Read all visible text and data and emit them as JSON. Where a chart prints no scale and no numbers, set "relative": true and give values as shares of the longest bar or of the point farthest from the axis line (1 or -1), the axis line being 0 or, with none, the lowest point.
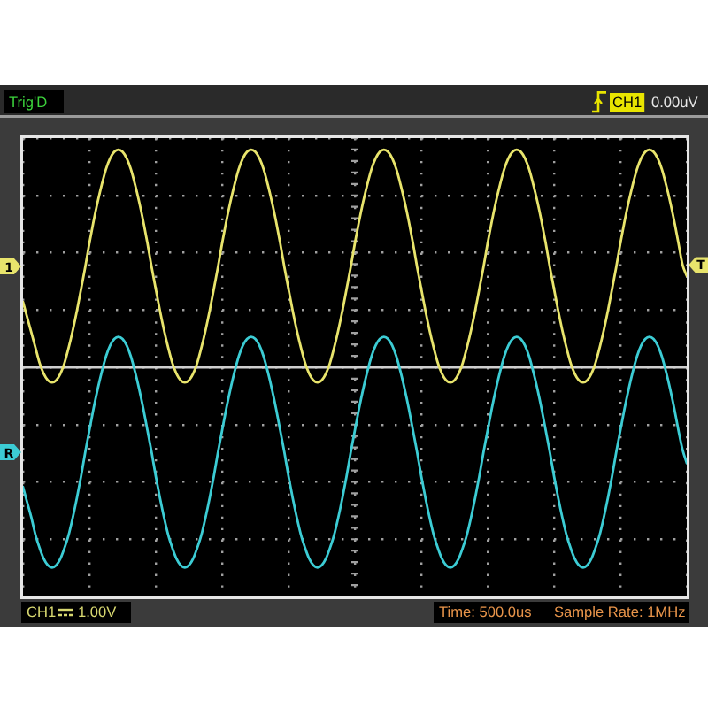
{
  "chart_data": {
    "type": "line",
    "relative": true,
    "grid": true,
    "categories": [
      null,
      null,
      null,
      null,
      null,
      null,
      null,
      null,
      null,
      null,
      null,
      null,
      null,
      null,
      null,
      null,
      null,
      null,
      null,
      null,
      null,
      null,
      null,
      null,
      null,
      null,
      null,
      null,
      null,
      null,
      null,
      null,
      null,
      null,
      null,
      null,
      null,
      null,
      null,
      null,
      null,
      null,
      null,
      null,
      null,
      null,
      null,
      null,
      null,
      null,
      null,
      null,
      null,
      null,
      null,
      null,
      null,
      null,
      null,
      null,
      null,
      null,
      null,
      null,
      null,
      null,
      null,
      null,
      null,
      null,
      null,
      null,
      null,
      null,
      null,
      null,
      null,
      null,
      null,
      null,
      null,
      null,
      null,
      null,
      null,
      null,
      null,
      null,
      null,
      null,
      null,
      null,
      null,
      null,
      null,
      null,
      null,
      null,
      null,
      null,
      null,
      null,
      null,
      null,
      null,
      null,
      null,
      null,
      null,
      null,
      null,
      null,
      null,
      null,
      null,
      null,
      null,
      null,
      null,
      null,
      null,
      null,
      null,
      null,
      null,
      null,
      null,
      null,
      null,
      null,
      null,
      null,
      null,
      null,
      null,
      null,
      null,
      null,
      null,
      null,
      null,
      null,
      null,
      null,
      null,
      null,
      null,
      null,
      null,
      null,
      null,
      null,
      null,
      null,
      null,
      null,
      null,
      null,
      null,
      null,
      null
    ],
    "series": [
      {
        "name": "1",
        "color": "#e8e46c",
        "values": [
          0.3,
          0.23,
          0.16,
          0.09,
          0.02,
          -0.03,
          -0.06,
          -0.07,
          -0.06,
          -0.03,
          0.02,
          0.09,
          0.17,
          0.26,
          0.36,
          0.46,
          0.57,
          0.67,
          0.76,
          0.84,
          0.91,
          0.96,
          0.99,
          1,
          0.99,
          0.96,
          0.91,
          0.84,
          0.76,
          0.67,
          0.57,
          0.46,
          0.36,
          0.26,
          0.17,
          0.09,
          0.02,
          -0.03,
          -0.06,
          -0.07,
          -0.06,
          -0.03,
          0.02,
          0.09,
          0.17,
          0.26,
          0.36,
          0.46,
          0.57,
          0.67,
          0.76,
          0.84,
          0.91,
          0.96,
          0.99,
          1,
          0.99,
          0.96,
          0.91,
          0.84,
          0.76,
          0.67,
          0.57,
          0.46,
          0.36,
          0.26,
          0.17,
          0.09,
          0.02,
          -0.03,
          -0.06,
          -0.07,
          -0.06,
          -0.03,
          0.02,
          0.09,
          0.17,
          0.26,
          0.36,
          0.46,
          0.57,
          0.67,
          0.76,
          0.84,
          0.91,
          0.96,
          0.99,
          1,
          0.99,
          0.96,
          0.91,
          0.84,
          0.76,
          0.67,
          0.57,
          0.46,
          0.36,
          0.26,
          0.17,
          0.09,
          0.02,
          -0.03,
          -0.06,
          -0.07,
          -0.06,
          -0.03,
          0.02,
          0.09,
          0.17,
          0.26,
          0.36,
          0.46,
          0.57,
          0.67,
          0.76,
          0.84,
          0.91,
          0.96,
          0.99,
          1,
          0.99,
          0.96,
          0.91,
          0.84,
          0.76,
          0.67,
          0.57,
          0.46,
          0.36,
          0.26,
          0.17,
          0.09,
          0.02,
          -0.03,
          -0.06,
          -0.07,
          -0.06,
          -0.03,
          0.02,
          0.09,
          0.17,
          0.26,
          0.36,
          0.46,
          0.57,
          0.67,
          0.76,
          0.84,
          0.91,
          0.96,
          0.99,
          1,
          0.99,
          0.96,
          0.91,
          0.84,
          0.76,
          0.67,
          0.57,
          0.47,
          0.42
        ]
      },
      {
        "name": "R",
        "color": "#3cccd4",
        "values": [
          -0.55,
          -0.62,
          -0.69,
          -0.77,
          -0.83,
          -0.88,
          -0.91,
          -0.92,
          -0.91,
          -0.88,
          -0.83,
          -0.77,
          -0.69,
          -0.6,
          -0.5,
          -0.39,
          -0.29,
          -0.19,
          -0.1,
          -0.02,
          0.05,
          0.1,
          0.13,
          0.14,
          0.13,
          0.1,
          0.05,
          -0.02,
          -0.1,
          -0.19,
          -0.29,
          -0.39,
          -0.5,
          -0.6,
          -0.69,
          -0.77,
          -0.83,
          -0.88,
          -0.91,
          -0.92,
          -0.91,
          -0.88,
          -0.83,
          -0.77,
          -0.69,
          -0.6,
          -0.5,
          -0.39,
          -0.29,
          -0.19,
          -0.1,
          -0.02,
          0.05,
          0.1,
          0.13,
          0.14,
          0.13,
          0.1,
          0.05,
          -0.02,
          -0.1,
          -0.19,
          -0.29,
          -0.39,
          -0.5,
          -0.6,
          -0.69,
          -0.77,
          -0.83,
          -0.88,
          -0.91,
          -0.92,
          -0.91,
          -0.88,
          -0.83,
          -0.77,
          -0.69,
          -0.6,
          -0.5,
          -0.39,
          -0.29,
          -0.19,
          -0.1,
          -0.02,
          0.05,
          0.1,
          0.13,
          0.14,
          0.13,
          0.1,
          0.05,
          -0.02,
          -0.1,
          -0.19,
          -0.29,
          -0.39,
          -0.5,
          -0.6,
          -0.69,
          -0.77,
          -0.83,
          -0.88,
          -0.91,
          -0.92,
          -0.91,
          -0.88,
          -0.83,
          -0.77,
          -0.69,
          -0.6,
          -0.5,
          -0.39,
          -0.29,
          -0.19,
          -0.1,
          -0.02,
          0.05,
          0.1,
          0.13,
          0.14,
          0.13,
          0.1,
          0.05,
          -0.02,
          -0.1,
          -0.19,
          -0.29,
          -0.39,
          -0.5,
          -0.6,
          -0.69,
          -0.77,
          -0.83,
          -0.88,
          -0.91,
          -0.92,
          -0.91,
          -0.88,
          -0.83,
          -0.77,
          -0.69,
          -0.6,
          -0.5,
          -0.39,
          -0.29,
          -0.19,
          -0.1,
          -0.02,
          0.05,
          0.1,
          0.13,
          0.14,
          0.13,
          0.1,
          0.05,
          -0.02,
          -0.1,
          -0.19,
          -0.29,
          -0.38,
          -0.44
        ]
      }
    ],
    "annotations": [
      "Trig'D",
      "CH1",
      "0.00uV",
      {
        "text": "T",
        "y": 0.47
      },
      "CH1",
      "1.00V",
      "Time: 500.0us",
      "Sample Rate: 1MHz"
    ]
  }
}
